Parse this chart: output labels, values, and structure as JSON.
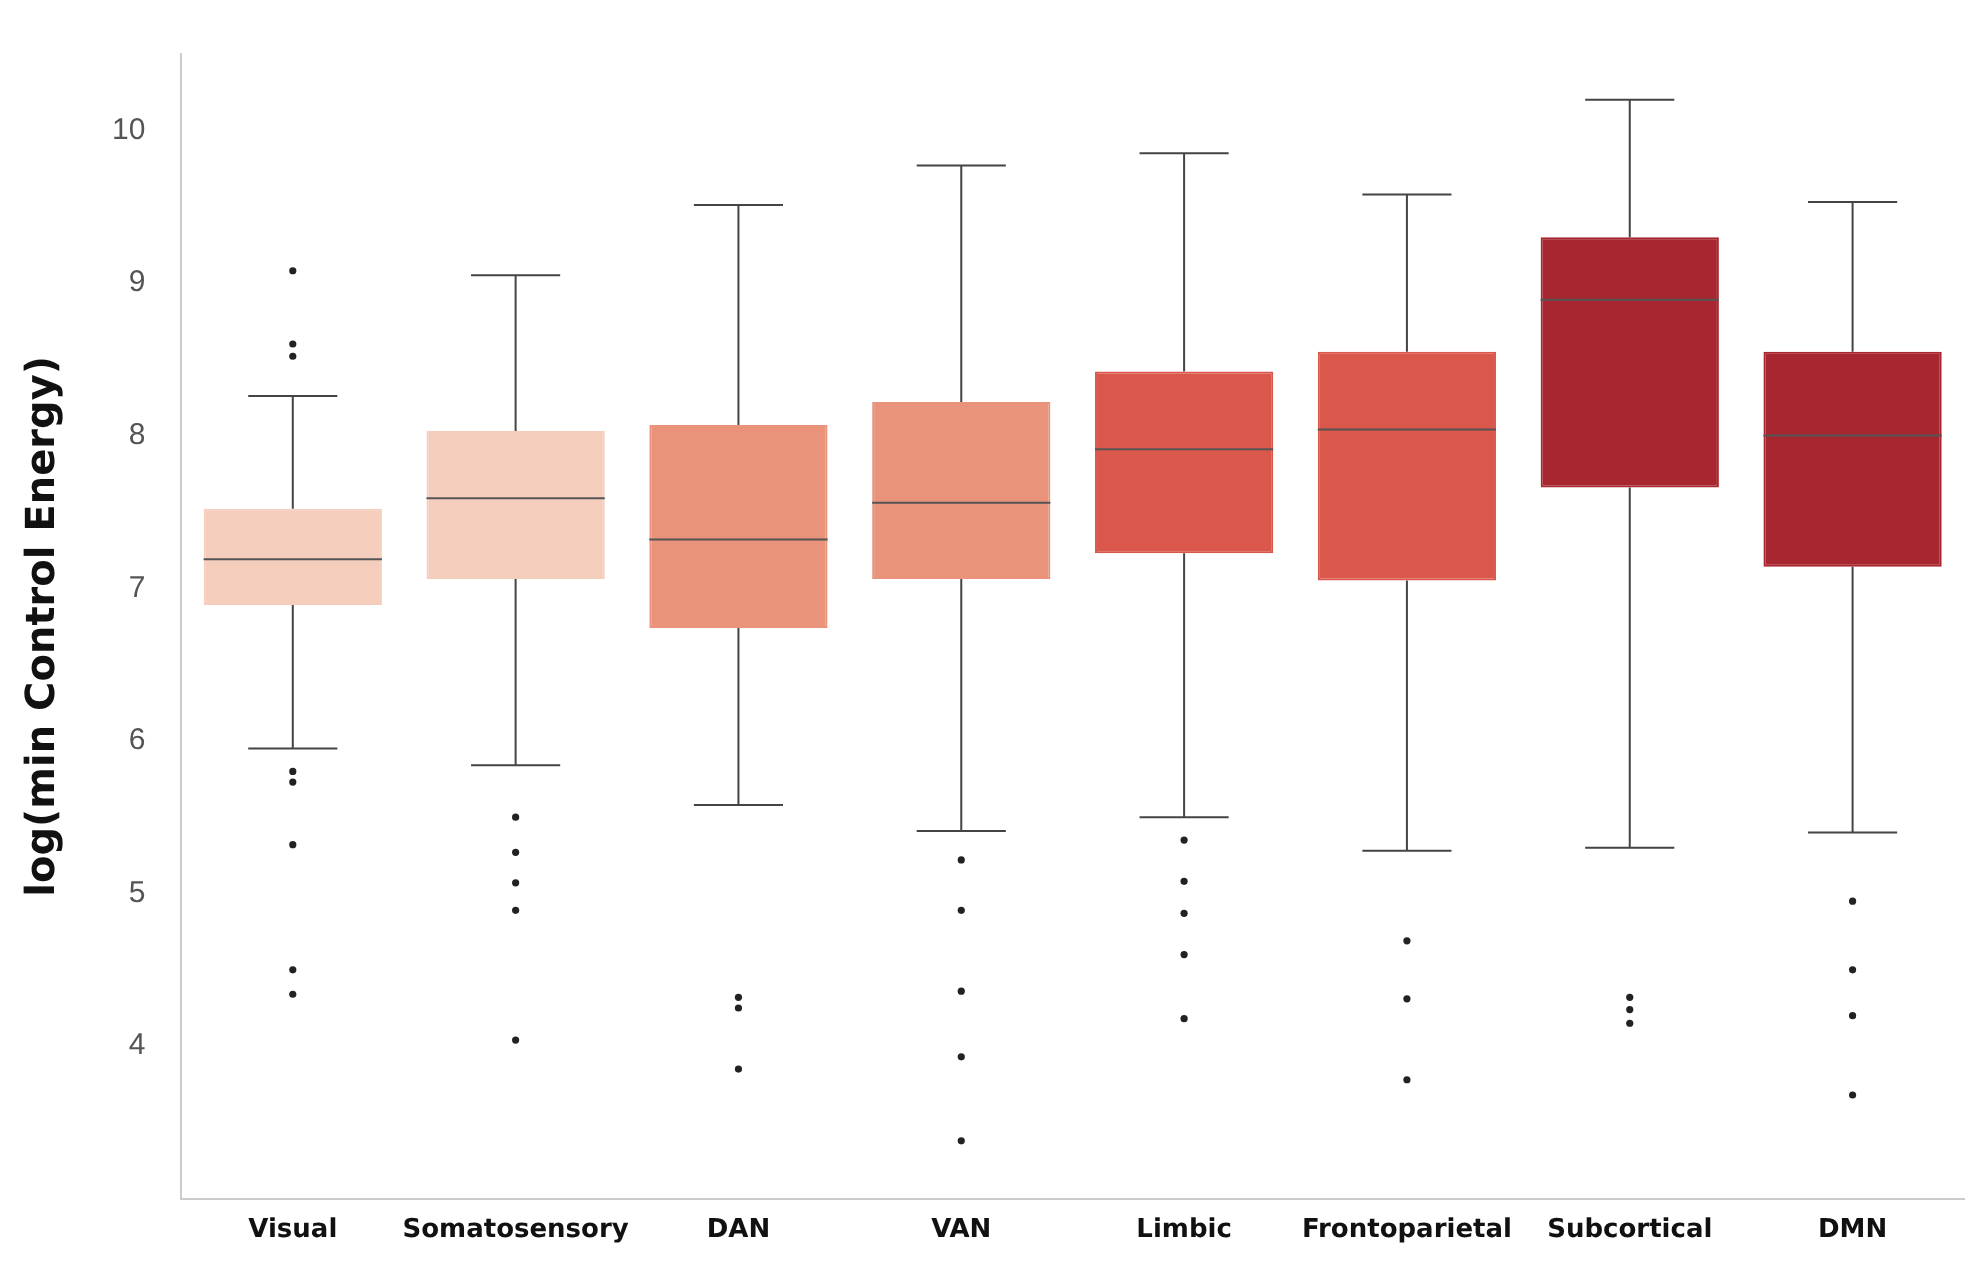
{
  "chart_data": {
    "type": "box",
    "ylabel": "log(min Control Energy)",
    "categories": [
      "Visual",
      "Somatosensory",
      "DAN",
      "VAN",
      "Limbic",
      "Frontoparietal",
      "Subcortical",
      "DMN"
    ],
    "colors": [
      "#f4cdbd",
      "#f4cdbd",
      "#e8937a",
      "#e8937a",
      "#d9584b",
      "#d9584b",
      "#a7262f",
      "#a7262f"
    ],
    "boxes": [
      {
        "low": 5.95,
        "q1": 6.89,
        "median": 7.19,
        "q3": 7.52,
        "high": 8.26,
        "outliers": [
          5.8,
          5.73,
          5.32,
          4.5,
          4.34,
          9.08,
          8.6,
          8.52
        ]
      },
      {
        "low": 5.84,
        "q1": 7.06,
        "median": 7.59,
        "q3": 8.03,
        "high": 9.05,
        "outliers": [
          5.5,
          5.27,
          5.07,
          4.89,
          4.04
        ]
      },
      {
        "low": 5.58,
        "q1": 6.74,
        "median": 7.32,
        "q3": 8.07,
        "high": 9.51,
        "outliers": [
          4.32,
          4.25,
          3.85
        ]
      },
      {
        "low": 5.41,
        "q1": 7.06,
        "median": 7.56,
        "q3": 8.22,
        "high": 9.77,
        "outliers": [
          5.22,
          4.89,
          4.36,
          3.93,
          3.38
        ]
      },
      {
        "low": 5.5,
        "q1": 7.23,
        "median": 7.91,
        "q3": 8.42,
        "high": 9.85,
        "outliers": [
          5.35,
          5.08,
          4.87,
          4.6,
          4.18
        ]
      },
      {
        "low": 5.28,
        "q1": 7.05,
        "median": 8.04,
        "q3": 8.55,
        "high": 9.58,
        "outliers": [
          4.69,
          4.31,
          3.78
        ]
      },
      {
        "low": 5.3,
        "q1": 7.66,
        "median": 8.89,
        "q3": 9.3,
        "high": 10.2,
        "outliers": [
          4.32,
          4.24,
          4.15
        ]
      },
      {
        "low": 5.4,
        "q1": 7.14,
        "median": 8.0,
        "q3": 8.55,
        "high": 9.53,
        "outliers": [
          4.95,
          4.5,
          4.2,
          3.68
        ]
      }
    ],
    "ylim": [
      3,
      10.5
    ],
    "yticks": [
      4,
      5,
      6,
      7,
      8,
      9,
      10
    ],
    "grid": false
  }
}
